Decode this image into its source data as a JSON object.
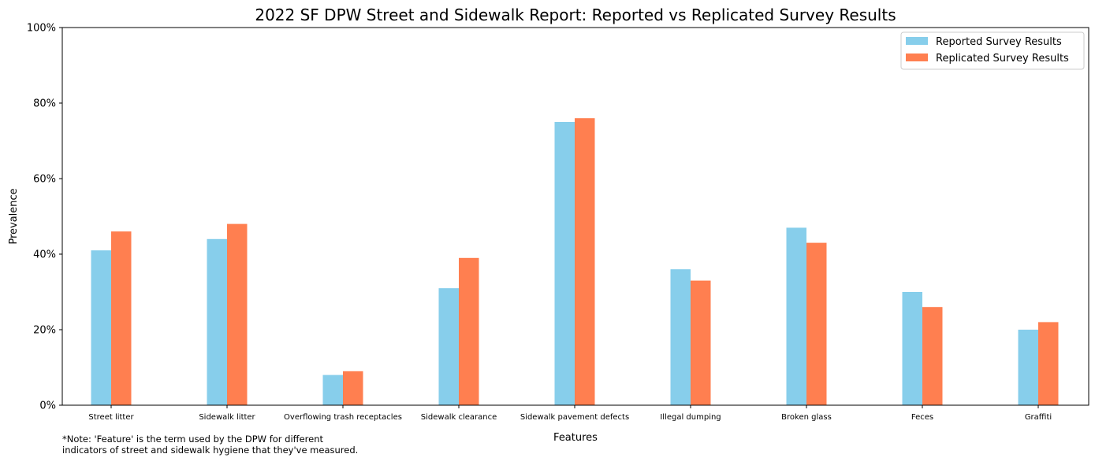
{
  "chart_data": {
    "type": "bar",
    "title": "2022 SF DPW Street and Sidewalk Report: Reported vs Replicated Survey Results",
    "xlabel": "Features",
    "ylabel": "Prevalence",
    "ylim": [
      0,
      100
    ],
    "yticks": [
      "0%",
      "20%",
      "40%",
      "60%",
      "80%",
      "100%"
    ],
    "ytick_values": [
      0,
      20,
      40,
      60,
      80,
      100
    ],
    "grid": false,
    "legend_position": "top-right",
    "categories": [
      "Street litter",
      "Sidewalk litter",
      "Overflowing trash receptacles",
      "Sidewalk clearance",
      "Sidewalk pavement defects",
      "Illegal dumping",
      "Broken glass",
      "Feces",
      "Graffiti"
    ],
    "series": [
      {
        "name": "Reported Survey Results",
        "color": "#87ceeb",
        "values": [
          41,
          44,
          8,
          31,
          75,
          36,
          47,
          30,
          20
        ]
      },
      {
        "name": "Replicated Survey Results",
        "color": "#ff7f50",
        "values": [
          46,
          48,
          9,
          39,
          76,
          33,
          43,
          26,
          22
        ]
      }
    ]
  },
  "note": {
    "line1": "*Note: 'Feature' is the term used by the DPW for different",
    "line2": "indicators of street and sidewalk hygiene that they've measured."
  }
}
